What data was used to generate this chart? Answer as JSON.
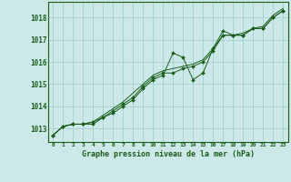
{
  "title": "Graphe pression niveau de la mer (hPa)",
  "bg_color": "#cce8e8",
  "plot_bg_color": "#cce8e8",
  "grid_color": "#99cccc",
  "line_color": "#1a5e1a",
  "marker_color": "#1a5e1a",
  "xlim": [
    -0.5,
    23.5
  ],
  "ylim": [
    1012.4,
    1018.7
  ],
  "yticks": [
    1013,
    1014,
    1015,
    1016,
    1017,
    1018
  ],
  "xticks": [
    0,
    1,
    2,
    3,
    4,
    5,
    6,
    7,
    8,
    9,
    10,
    11,
    12,
    13,
    14,
    15,
    16,
    17,
    18,
    19,
    20,
    21,
    22,
    23
  ],
  "series1_x": [
    0,
    1,
    2,
    3,
    4,
    5,
    6,
    7,
    8,
    9,
    10,
    11,
    12,
    13,
    14,
    15,
    16,
    17,
    18,
    19,
    20,
    21,
    22,
    23
  ],
  "series1": [
    1012.7,
    1013.1,
    1013.2,
    1013.2,
    1013.2,
    1013.5,
    1013.7,
    1014.0,
    1014.3,
    1014.8,
    1015.2,
    1015.4,
    1016.4,
    1016.2,
    1015.2,
    1015.5,
    1016.6,
    1017.4,
    1017.2,
    1017.2,
    1017.5,
    1017.5,
    1018.0,
    1018.3
  ],
  "series2_x": [
    0,
    1,
    2,
    3,
    4,
    5,
    6,
    7,
    8,
    9,
    10,
    11,
    12,
    13,
    14,
    15,
    16,
    17,
    18,
    19,
    20,
    21,
    22,
    23
  ],
  "series2": [
    1012.7,
    1013.1,
    1013.2,
    1013.2,
    1013.3,
    1013.5,
    1013.8,
    1014.1,
    1014.4,
    1014.9,
    1015.3,
    1015.5,
    1015.5,
    1015.7,
    1015.8,
    1016.0,
    1016.5,
    1017.2,
    1017.2,
    1017.2,
    1017.5,
    1017.5,
    1018.0,
    1018.3
  ],
  "series3_x": [
    0,
    1,
    2,
    3,
    4,
    5,
    6,
    7,
    8,
    9,
    10,
    11,
    12,
    13,
    14,
    15,
    16,
    17,
    18,
    19,
    20,
    21,
    22,
    23
  ],
  "series3": [
    1012.7,
    1013.1,
    1013.2,
    1013.2,
    1013.3,
    1013.6,
    1013.9,
    1014.2,
    1014.6,
    1015.0,
    1015.4,
    1015.6,
    1015.7,
    1015.8,
    1015.9,
    1016.1,
    1016.6,
    1017.2,
    1017.2,
    1017.3,
    1017.5,
    1017.6,
    1018.1,
    1018.4
  ]
}
